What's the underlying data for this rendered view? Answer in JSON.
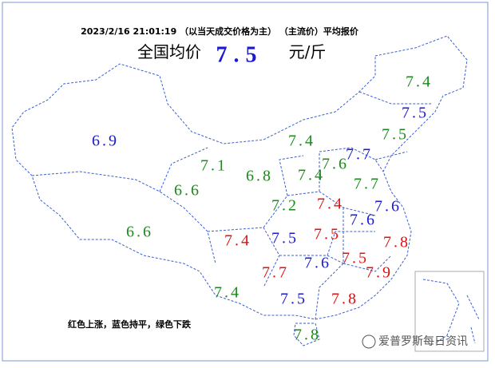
{
  "header": {
    "timestamp": "2023/2/16  21:01:19 （以当天成交价格为主） （主流价）平均报价",
    "national_label": "全国均价",
    "national_value": 7.5,
    "unit": "元/斤"
  },
  "legend": "红色上涨，蓝色持平，绿色下跌",
  "watermark": "爱普罗斯每日资讯",
  "regions": [
    {
      "value": 7.4,
      "color": "#1a8a1a"
    },
    {
      "value": 7.5,
      "color": "#1a1ad0"
    },
    {
      "value": 7.5,
      "color": "#1a8a1a"
    },
    {
      "value": 6.9,
      "color": "#1a1ad0"
    },
    {
      "value": 7.4,
      "color": "#1a8a1a"
    },
    {
      "value": 7.7,
      "color": "#1a1ad0"
    },
    {
      "value": 7.1,
      "color": "#1a8a1a"
    },
    {
      "value": 6.8,
      "color": "#1a8a1a"
    },
    {
      "value": 7.4,
      "color": "#1a8a1a"
    },
    {
      "value": 7.6,
      "color": "#1a8a1a"
    },
    {
      "value": 6.6,
      "color": "#1a8a1a"
    },
    {
      "value": 7.7,
      "color": "#1a8a1a"
    },
    {
      "value": 7.2,
      "color": "#1a8a1a"
    },
    {
      "value": 7.4,
      "color": "#e01010"
    },
    {
      "value": 7.6,
      "color": "#1a1ad0"
    },
    {
      "value": 7.6,
      "color": "#1a1ad0"
    },
    {
      "value": 6.6,
      "color": "#1a8a1a"
    },
    {
      "value": 7.4,
      "color": "#e01010"
    },
    {
      "value": 7.5,
      "color": "#1a1ad0"
    },
    {
      "value": 7.5,
      "color": "#e01010"
    },
    {
      "value": 7.8,
      "color": "#e01010"
    },
    {
      "value": 7.5,
      "color": "#e01010"
    },
    {
      "value": 7.6,
      "color": "#1a1ad0"
    },
    {
      "value": 7.7,
      "color": "#e01010"
    },
    {
      "value": 7.9,
      "color": "#e01010"
    },
    {
      "value": 7.4,
      "color": "#1a8a1a"
    },
    {
      "value": 7.5,
      "color": "#1a1ad0"
    },
    {
      "value": 7.8,
      "color": "#e01010"
    },
    {
      "value": 7.8,
      "color": "#1a8a1a"
    }
  ]
}
